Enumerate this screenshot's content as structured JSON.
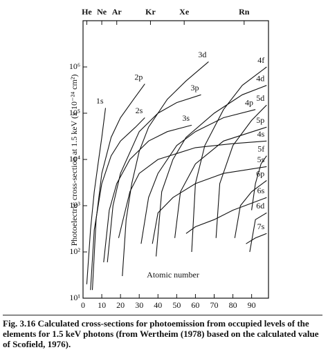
{
  "chart_data": {
    "type": "line",
    "x_label": "Atomic number",
    "y_label": "Photoelectric cross-section at 1.5 keV (x 10⁻²⁴ cm²)",
    "caption": "Fig. 3.16 Calculated cross-sections for photoemission from occupied levels of the elements for 1.5 keV photons (from Wertheim (1978) based on the calculated value of Scofield, 1976).",
    "xlim": [
      0,
      99
    ],
    "xticks": [
      0,
      10,
      20,
      30,
      40,
      50,
      60,
      70,
      80,
      90
    ],
    "top_ticks": [
      {
        "value": 2,
        "label": "He"
      },
      {
        "value": 10,
        "label": "Ne"
      },
      {
        "value": 18,
        "label": "Ar"
      },
      {
        "value": 36,
        "label": "Kr"
      },
      {
        "value": 54,
        "label": "Xe"
      },
      {
        "value": 86,
        "label": "Rn"
      }
    ],
    "ylim": [
      10,
      10000000
    ],
    "log_y": true,
    "yticks": [
      {
        "value": 10,
        "label": "10¹"
      },
      {
        "value": 100,
        "label": "10²"
      },
      {
        "value": 1000,
        "label": "10³"
      },
      {
        "value": 10000,
        "label": "10⁴"
      },
      {
        "value": 100000,
        "label": "10⁵"
      },
      {
        "value": 1000000,
        "label": "10⁶"
      }
    ],
    "series": [
      {
        "name": "1s",
        "color": "#111",
        "x": [
          2,
          4,
          6,
          8,
          10,
          12
        ],
        "values": [
          20,
          300,
          2000,
          8000,
          30000,
          130000
        ]
      },
      {
        "name": "2s",
        "color": "#111",
        "x": [
          4,
          6,
          10,
          15,
          20,
          28,
          33
        ],
        "values": [
          15,
          300,
          3000,
          12000,
          25000,
          50000,
          80000
        ]
      },
      {
        "name": "2p",
        "color": "#111",
        "x": [
          5,
          7,
          10,
          15,
          20,
          27,
          33
        ],
        "values": [
          15,
          500,
          5000,
          30000,
          80000,
          200000,
          430000
        ]
      },
      {
        "name": "3s",
        "color": "#111",
        "x": [
          11,
          14,
          18,
          25,
          35,
          45,
          58
        ],
        "values": [
          60,
          800,
          3000,
          10000,
          25000,
          40000,
          55000
        ]
      },
      {
        "name": "3p",
        "color": "#111",
        "x": [
          13,
          16,
          20,
          30,
          40,
          50,
          63
        ],
        "values": [
          60,
          1000,
          5000,
          40000,
          100000,
          170000,
          250000
        ]
      },
      {
        "name": "3d",
        "color": "#111",
        "x": [
          21,
          23,
          26,
          30,
          35,
          45,
          55,
          67
        ],
        "values": [
          30,
          500,
          3000,
          15000,
          50000,
          200000,
          500000,
          1300000
        ]
      },
      {
        "name": "4s",
        "color": "#111",
        "x": [
          19,
          25,
          30,
          40,
          60,
          80,
          98
        ],
        "values": [
          200,
          2000,
          5000,
          10000,
          18000,
          22000,
          25000
        ]
      },
      {
        "name": "4p",
        "color": "#111",
        "x": [
          31,
          35,
          40,
          50,
          60,
          75,
          92
        ],
        "values": [
          150,
          1500,
          5000,
          20000,
          40000,
          80000,
          120000
        ]
      },
      {
        "name": "4d",
        "color": "#111",
        "x": [
          39,
          42,
          48,
          55,
          70,
          85,
          98
        ],
        "values": [
          80,
          2000,
          10000,
          30000,
          100000,
          250000,
          400000
        ]
      },
      {
        "name": "4f",
        "color": "#111",
        "x": [
          58,
          60,
          65,
          75,
          85,
          98
        ],
        "values": [
          100,
          3000,
          20000,
          120000,
          400000,
          1000000
        ]
      },
      {
        "name": "5s",
        "color": "#111",
        "x": [
          37,
          40,
          48,
          60,
          75,
          98
        ],
        "values": [
          150,
          700,
          1500,
          3000,
          5000,
          7000
        ]
      },
      {
        "name": "5p",
        "color": "#111",
        "x": [
          49,
          52,
          60,
          75,
          98
        ],
        "values": [
          200,
          2000,
          8000,
          25000,
          50000
        ]
      },
      {
        "name": "5d",
        "color": "#111",
        "x": [
          71,
          73,
          80,
          90,
          98
        ],
        "values": [
          200,
          3000,
          20000,
          70000,
          150000
        ]
      },
      {
        "name": "5f",
        "color": "#111",
        "x": [
          90,
          92,
          95,
          98
        ],
        "values": [
          800,
          3000,
          8000,
          12000
        ]
      },
      {
        "name": "6s",
        "color": "#111",
        "x": [
          55,
          60,
          70,
          80,
          98
        ],
        "values": [
          250,
          350,
          500,
          800,
          1500
        ]
      },
      {
        "name": "6p",
        "color": "#111",
        "x": [
          81,
          84,
          90,
          98
        ],
        "values": [
          200,
          1000,
          2000,
          3500
        ]
      },
      {
        "name": "6d",
        "color": "#111",
        "x": [
          89,
          92,
          98
        ],
        "values": [
          100,
          500,
          700
        ]
      },
      {
        "name": "7s",
        "color": "#111",
        "x": [
          87,
          92,
          98
        ],
        "values": [
          150,
          200,
          250
        ]
      }
    ]
  }
}
